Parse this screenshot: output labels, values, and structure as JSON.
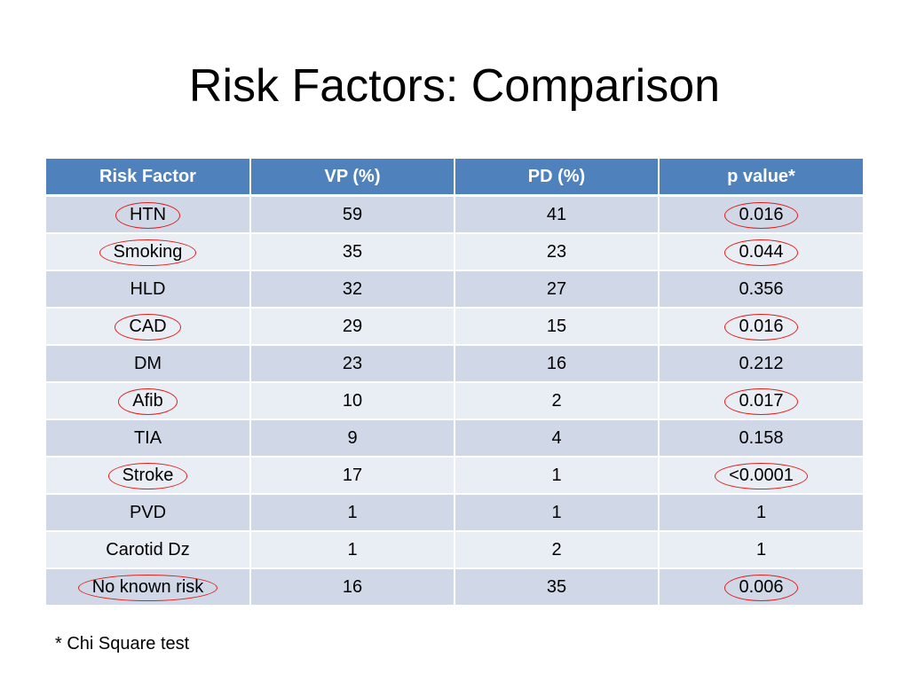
{
  "title": "Risk Factors: Comparison",
  "table": {
    "headers": [
      "Risk Factor",
      "VP (%)",
      "PD (%)",
      "p value*"
    ],
    "rows": [
      {
        "factor": "HTN",
        "vp": "59",
        "pd": "41",
        "p": "0.016",
        "highlighted": true
      },
      {
        "factor": "Smoking",
        "vp": "35",
        "pd": "23",
        "p": "0.044",
        "highlighted": true
      },
      {
        "factor": "HLD",
        "vp": "32",
        "pd": "27",
        "p": "0.356",
        "highlighted": false
      },
      {
        "factor": "CAD",
        "vp": "29",
        "pd": "15",
        "p": "0.016",
        "highlighted": true
      },
      {
        "factor": "DM",
        "vp": "23",
        "pd": "16",
        "p": "0.212",
        "highlighted": false
      },
      {
        "factor": "Afib",
        "vp": "10",
        "pd": "2",
        "p": "0.017",
        "highlighted": true
      },
      {
        "factor": "TIA",
        "vp": "9",
        "pd": "4",
        "p": "0.158",
        "highlighted": false
      },
      {
        "factor": "Stroke",
        "vp": "17",
        "pd": "1",
        "p": "<0.0001",
        "highlighted": true
      },
      {
        "factor": "PVD",
        "vp": "1",
        "pd": "1",
        "p": "1",
        "highlighted": false
      },
      {
        "factor": "Carotid Dz",
        "vp": "1",
        "pd": "2",
        "p": "1",
        "highlighted": false
      },
      {
        "factor": "No known risk",
        "vp": "16",
        "pd": "35",
        "p": "0.006",
        "highlighted": true
      }
    ]
  },
  "footnote": "* Chi Square test",
  "colors": {
    "header_bg": "#4f81bd",
    "row_odd": "#d0d8e8",
    "row_even": "#e9edf4",
    "highlight_circle": "#e0201b"
  }
}
